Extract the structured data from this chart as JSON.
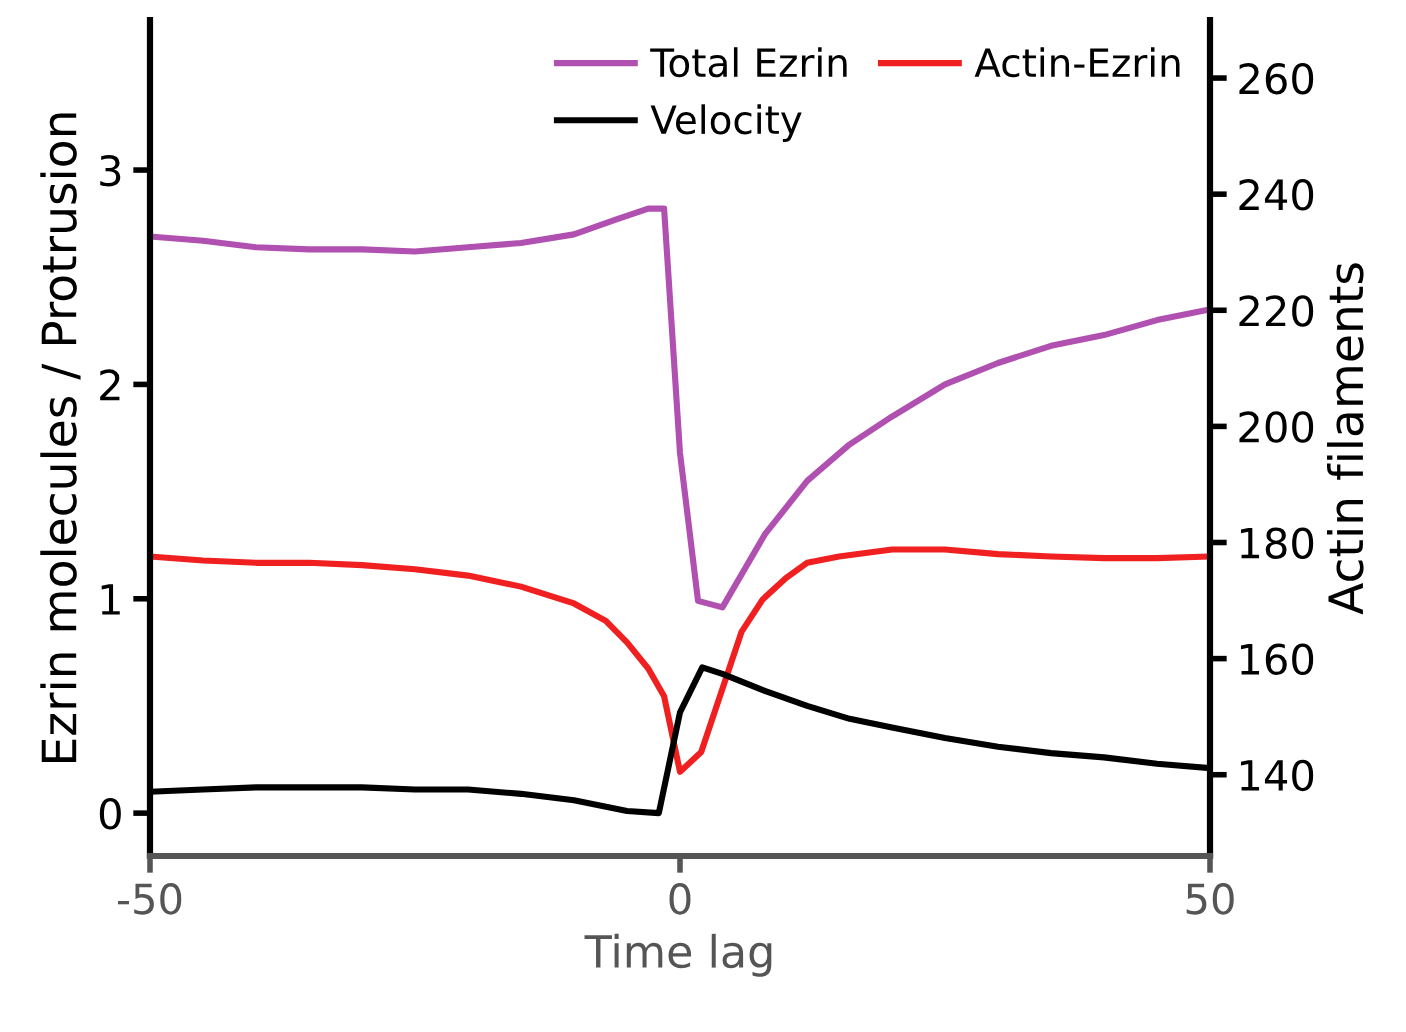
{
  "chart_data": {
    "type": "line",
    "xlabel": "Time lag",
    "ylabel": "Ezrin molecules / Protrusion",
    "y2label": "Actin filaments",
    "xlim": [
      -50,
      50
    ],
    "xticks": [
      -50,
      0,
      50
    ],
    "ylim": [
      -0.2,
      3.7
    ],
    "yticks": [
      0,
      1,
      2,
      3
    ],
    "y2lim": [
      126,
      270
    ],
    "y2ticks": [
      140,
      160,
      180,
      200,
      220,
      240,
      260
    ],
    "grid": false,
    "legend": "top right",
    "marker": "none",
    "line_style": "solid",
    "series": [
      {
        "name": "Total Ezrin",
        "color": "#b050b0",
        "x": [
          -50,
          -45,
          -40,
          -35,
          -30,
          -25,
          -20,
          -15,
          -10,
          -6,
          -3,
          -1.5,
          0,
          1.7,
          4,
          8,
          12,
          16,
          20,
          25,
          30,
          35,
          40,
          45,
          50
        ],
        "values": [
          2.69,
          2.67,
          2.64,
          2.63,
          2.63,
          2.62,
          2.64,
          2.66,
          2.7,
          2.77,
          2.82,
          2.82,
          1.68,
          0.99,
          0.96,
          1.3,
          1.55,
          1.72,
          1.85,
          2.0,
          2.1,
          2.18,
          2.23,
          2.3,
          2.35
        ]
      },
      {
        "name": "Actin-Ezrin",
        "color": "#f02020",
        "axis": "y2",
        "x": [
          -50,
          -45,
          -40,
          -35,
          -30,
          -25,
          -20,
          -15,
          -10,
          -7,
          -5,
          -3,
          -1.5,
          0,
          2,
          5.8,
          7.8,
          10,
          12,
          15,
          20,
          25,
          30,
          35,
          40,
          45,
          50
        ],
        "values": [
          177.6,
          176.9,
          176.5,
          176.5,
          176.1,
          175.4,
          174.3,
          172.4,
          169.5,
          166.5,
          162.8,
          158.3,
          153.5,
          140.5,
          143.9,
          164.6,
          170.2,
          173.9,
          176.5,
          177.6,
          178.8,
          178.8,
          178.0,
          177.6,
          177.3,
          177.3,
          177.6
        ]
      },
      {
        "name": "Velocity",
        "color": "#000000",
        "x": [
          -50,
          -45,
          -40,
          -35,
          -30,
          -25,
          -20,
          -15,
          -10,
          -5,
          -2,
          0,
          2.1,
          4,
          8,
          12,
          16,
          20,
          25,
          30,
          35,
          40,
          45,
          50
        ],
        "values": [
          0.1,
          0.11,
          0.12,
          0.12,
          0.12,
          0.11,
          0.11,
          0.09,
          0.06,
          0.01,
          0.0,
          0.47,
          0.68,
          0.65,
          0.57,
          0.5,
          0.44,
          0.4,
          0.35,
          0.31,
          0.28,
          0.26,
          0.23,
          0.21
        ]
      }
    ]
  }
}
